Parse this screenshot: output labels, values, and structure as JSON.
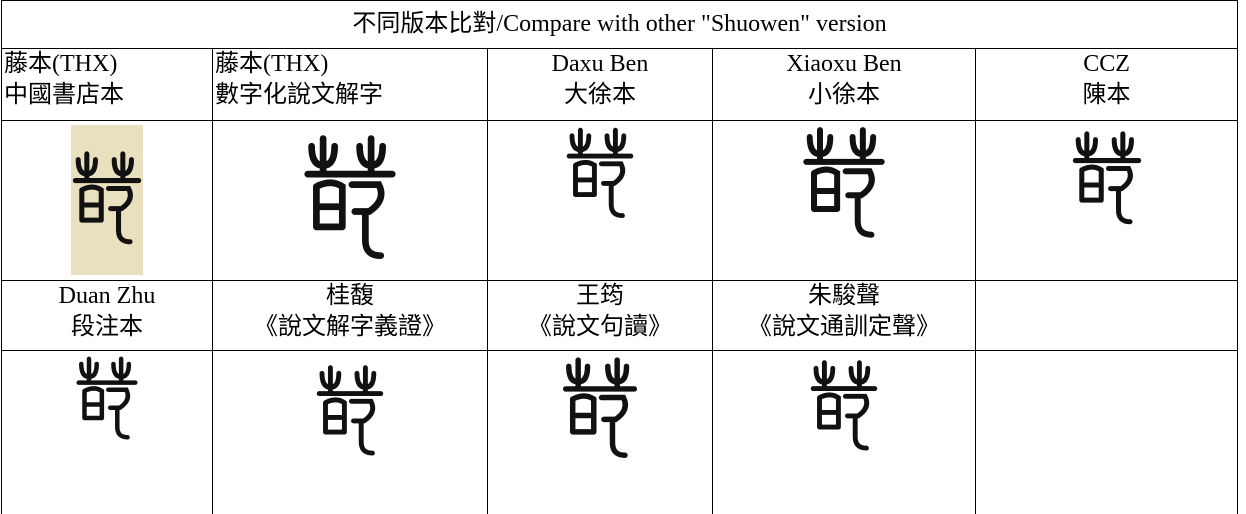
{
  "header": {
    "title": "不同版本比對/Compare with other \"Shuowen\" version"
  },
  "row1": [
    [
      "藤本(THX)",
      "中國書店本"
    ],
    [
      "藤本(THX)",
      "數字化說文解字"
    ],
    [
      "Daxu Ben",
      "大徐本"
    ],
    [
      "Xiaoxu Ben",
      "小徐本"
    ],
    [
      "CCZ",
      "陳本"
    ]
  ],
  "row2": [
    [
      "Duan Zhu",
      "段注本"
    ],
    [
      "桂馥",
      "《說文解字義證》"
    ],
    [
      "王筠",
      "《說文句讀》"
    ],
    [
      "朱駿聲",
      "《說文通訓定聲》"
    ]
  ]
}
